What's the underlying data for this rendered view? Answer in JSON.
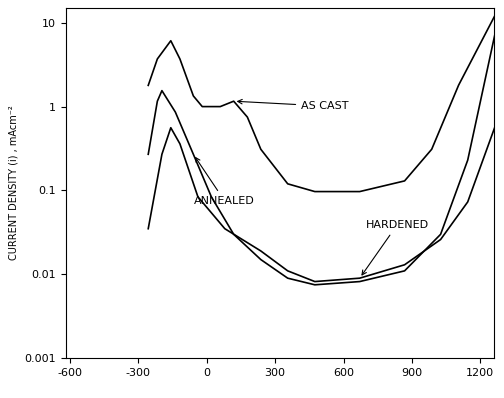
{
  "chart_data": {
    "type": "line",
    "y_label": "CURRENT DENSITY (i) , mAcm⁻²",
    "log": "y",
    "grid": false,
    "xlim": [
      -620,
      1260
    ],
    "ylim": [
      0.001,
      15
    ],
    "xticks": [
      -600,
      -300,
      0,
      300,
      600,
      900,
      1200
    ],
    "yticks": [
      0.001,
      0.01,
      0.1,
      1,
      10
    ],
    "series": [
      {
        "name": "AS CAST",
        "color": "#000000",
        "line_style": "solid",
        "x": [
          -257,
          -217,
          -158,
          -118,
          -59,
          -20,
          59,
          118,
          178,
          237,
          355,
          474,
          671,
          868,
          987,
          1105,
          1263
        ],
        "values": [
          1.79,
          3.7,
          6.1,
          3.7,
          1.34,
          1.0,
          1.0,
          1.16,
          0.75,
          0.31,
          0.12,
          0.097,
          0.097,
          0.13,
          0.31,
          1.8,
          12
        ]
      },
      {
        "name": "ANNEALED",
        "color": "#000000",
        "line_style": "solid",
        "x": [
          -257,
          -217,
          -197,
          -138,
          -59,
          20,
          118,
          237,
          355,
          474,
          671,
          868,
          1026,
          1145,
          1263
        ],
        "values": [
          0.27,
          1.16,
          1.55,
          0.86,
          0.27,
          0.084,
          0.03,
          0.015,
          0.009,
          0.0075,
          0.0082,
          0.011,
          0.03,
          0.23,
          7.0
        ]
      },
      {
        "name": "HARDENED",
        "color": "#000000",
        "line_style": "solid",
        "x": [
          -257,
          -197,
          -158,
          -118,
          -39,
          79,
          237,
          355,
          474,
          671,
          868,
          1026,
          1145,
          1263
        ],
        "values": [
          0.035,
          0.27,
          0.56,
          0.36,
          0.084,
          0.035,
          0.019,
          0.011,
          0.0082,
          0.009,
          0.013,
          0.026,
          0.073,
          0.56
        ]
      }
    ]
  }
}
